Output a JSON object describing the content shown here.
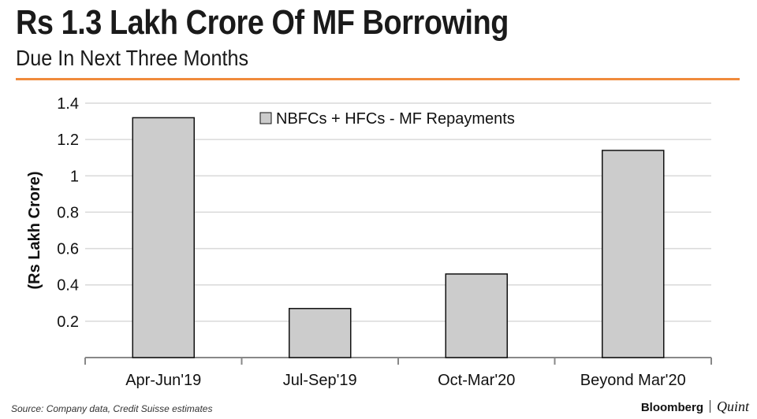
{
  "header": {
    "title": "Rs 1.3 Lakh Crore Of MF Borrowing",
    "subtitle": "Due In Next Three Months"
  },
  "footer": {
    "source": "Source: Company data, Credit Suisse estimates",
    "brand_primary": "Bloomberg",
    "brand_secondary": "Quint"
  },
  "colors": {
    "accent_rule": "#f08a3c",
    "bar_fill": "#cccccc",
    "bar_stroke": "#111111",
    "grid": "#d9d9d9"
  },
  "chart_data": {
    "type": "bar",
    "title": "Rs 1.3 Lakh Crore Of MF Borrowing",
    "subtitle": "Due In Next Three Months",
    "xlabel": "",
    "ylabel": "(Rs Lakh Crore)",
    "categories": [
      "Apr-Jun'19",
      "Jul-Sep'19",
      "Oct-Mar'20",
      "Beyond Mar'20"
    ],
    "series": [
      {
        "name": "NBFCs + HFCs - MF Repayments",
        "values": [
          1.32,
          0.27,
          0.46,
          1.14
        ]
      }
    ],
    "ylim": [
      0,
      1.4
    ],
    "yticks": [
      0.2,
      0.4,
      0.6,
      0.8,
      1,
      1.2,
      1.4
    ],
    "ytick_labels": [
      "0.2",
      "0.4",
      "0.6",
      "0.8",
      "1",
      "1.2",
      "1.4"
    ],
    "grid": true,
    "legend_position": "top-center"
  }
}
